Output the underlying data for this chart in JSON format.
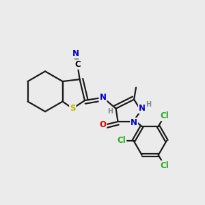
{
  "bg_color": "#ebebeb",
  "bond_color": "#1a1a1a",
  "bond_width": 1.6,
  "atom_colors": {
    "N": "#0000cc",
    "S": "#b8b800",
    "O": "#dd0000",
    "Cl": "#22aa22",
    "H": "#888888",
    "C": "#000000"
  },
  "font_size_atom": 8.5,
  "font_size_small": 7.0
}
